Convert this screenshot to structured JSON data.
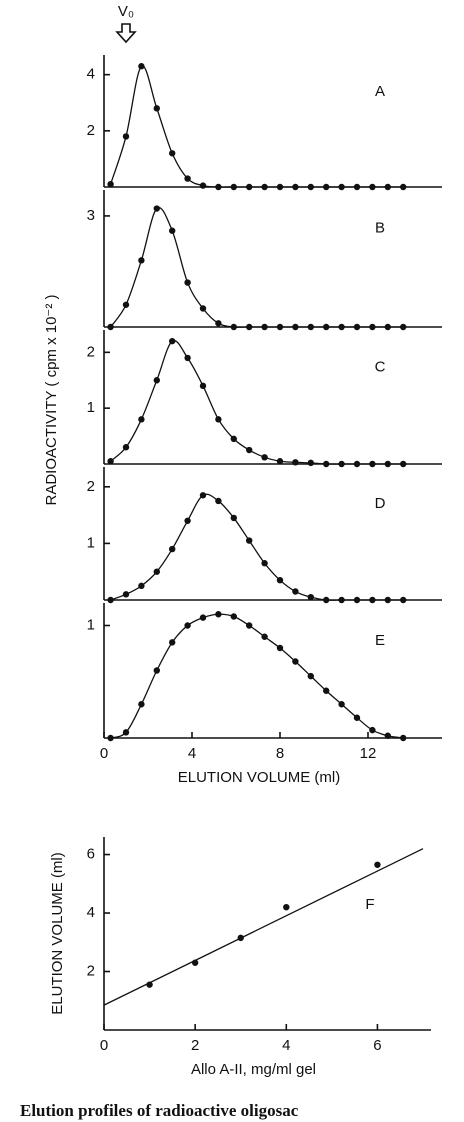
{
  "chart_data": [
    {
      "type": "line",
      "label": "A",
      "annotation": {
        "text": "V₀",
        "x": 1.0
      },
      "x": [
        0.3,
        1.0,
        1.7,
        2.4,
        3.1,
        3.8,
        4.5,
        5.2,
        5.9,
        6.6,
        7.3,
        8.0,
        8.7,
        9.4,
        10.1,
        10.8,
        11.5,
        12.2,
        12.9,
        13.6
      ],
      "values": [
        0.1,
        1.8,
        4.3,
        2.8,
        1.2,
        0.3,
        0.05,
        0,
        0,
        0,
        0,
        0,
        0,
        0,
        0,
        0,
        0,
        0,
        0,
        0
      ],
      "xlim": [
        0,
        15
      ],
      "ylim": [
        0,
        4.7
      ],
      "yticks": [
        2,
        4
      ]
    },
    {
      "type": "line",
      "label": "B",
      "x": [
        0.3,
        1.0,
        1.7,
        2.4,
        3.1,
        3.8,
        4.5,
        5.2,
        5.9,
        6.6,
        7.3,
        8.0,
        8.7,
        9.4,
        10.1,
        10.8,
        11.5,
        12.2,
        12.9,
        13.6
      ],
      "values": [
        0,
        0.6,
        1.8,
        3.2,
        2.6,
        1.2,
        0.5,
        0.1,
        0,
        0,
        0,
        0,
        0,
        0,
        0,
        0,
        0,
        0,
        0,
        0
      ],
      "xlim": [
        0,
        15
      ],
      "ylim": [
        0,
        3.7
      ],
      "yticks": [
        3
      ]
    },
    {
      "type": "line",
      "label": "C",
      "ylabel": "RADIOACTIVITY ( cpm x 10⁻² )",
      "x": [
        0.3,
        1.0,
        1.7,
        2.4,
        3.1,
        3.8,
        4.5,
        5.2,
        5.9,
        6.6,
        7.3,
        8.0,
        8.7,
        9.4,
        10.1,
        10.8,
        11.5,
        12.2,
        12.9,
        13.6
      ],
      "values": [
        0.05,
        0.3,
        0.8,
        1.5,
        2.2,
        1.9,
        1.4,
        0.8,
        0.45,
        0.25,
        0.12,
        0.05,
        0.03,
        0.02,
        0,
        0,
        0,
        0,
        0,
        0
      ],
      "xlim": [
        0,
        15
      ],
      "ylim": [
        0,
        2.4
      ],
      "yticks": [
        1,
        2
      ]
    },
    {
      "type": "line",
      "label": "D",
      "x": [
        0.3,
        1.0,
        1.7,
        2.4,
        3.1,
        3.8,
        4.5,
        5.2,
        5.9,
        6.6,
        7.3,
        8.0,
        8.7,
        9.4,
        10.1,
        10.8,
        11.5,
        12.2,
        12.9,
        13.6
      ],
      "values": [
        0,
        0.1,
        0.25,
        0.5,
        0.9,
        1.4,
        1.85,
        1.75,
        1.45,
        1.05,
        0.65,
        0.35,
        0.15,
        0.05,
        0,
        0,
        0,
        0,
        0,
        0
      ],
      "xlim": [
        0,
        15
      ],
      "ylim": [
        0,
        2.35
      ],
      "yticks": [
        1,
        2
      ]
    },
    {
      "type": "line",
      "label": "E",
      "xlabel": "ELUTION  VOLUME (ml)",
      "x": [
        0.3,
        1.0,
        1.7,
        2.4,
        3.1,
        3.8,
        4.5,
        5.2,
        5.9,
        6.6,
        7.3,
        8.0,
        8.7,
        9.4,
        10.1,
        10.8,
        11.5,
        12.2,
        12.9,
        13.6
      ],
      "values": [
        0,
        0.05,
        0.3,
        0.6,
        0.85,
        1.0,
        1.07,
        1.1,
        1.08,
        1.0,
        0.9,
        0.8,
        0.68,
        0.55,
        0.42,
        0.3,
        0.18,
        0.07,
        0.02,
        0
      ],
      "xlim": [
        0,
        15
      ],
      "ylim": [
        0,
        1.2
      ],
      "yticks": [
        1
      ],
      "xticks": [
        0,
        4,
        8,
        12
      ]
    },
    {
      "type": "scatter",
      "label": "F",
      "xlabel": "Allo A-II, mg/ml gel",
      "ylabel": "ELUTION  VOLUME (ml)",
      "x": [
        1,
        2,
        3,
        4,
        6
      ],
      "values": [
        1.55,
        2.3,
        3.15,
        4.2,
        5.65
      ],
      "fit": {
        "x": [
          0,
          7
        ],
        "values": [
          0.85,
          6.2
        ]
      },
      "xlim": [
        0,
        7
      ],
      "ylim": [
        0,
        6.6
      ],
      "xticks": [
        0,
        2,
        4,
        6
      ],
      "yticks": [
        2,
        4,
        6
      ]
    }
  ],
  "caption": "Elution profiles of radioactive oligosac"
}
